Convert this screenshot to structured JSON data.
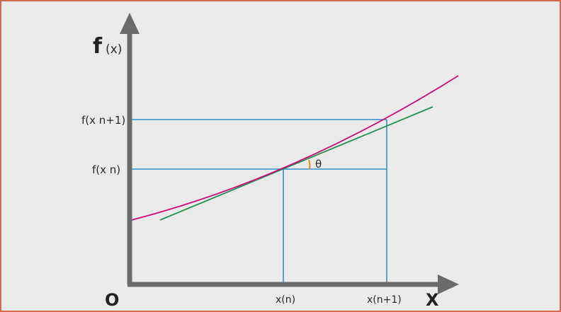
{
  "diagram": {
    "y_axis_label_main": "f",
    "y_axis_label_paren": "(x)",
    "x_axis_label": "X",
    "origin_label": "O",
    "theta_label": "θ",
    "y_tick_upper": "f(x n+1)",
    "y_tick_lower": "f(x n)",
    "x_tick_left": "x(n)",
    "x_tick_right": "x(n+1)",
    "colors": {
      "background": "#ebebeb",
      "frame_border": "#d9694f",
      "axes": "#6b6b6b",
      "curve": "#cc0a76",
      "tangent": "#1e9250",
      "guides": "#2f8fd0",
      "angle_arc": "#e8921c"
    }
  }
}
